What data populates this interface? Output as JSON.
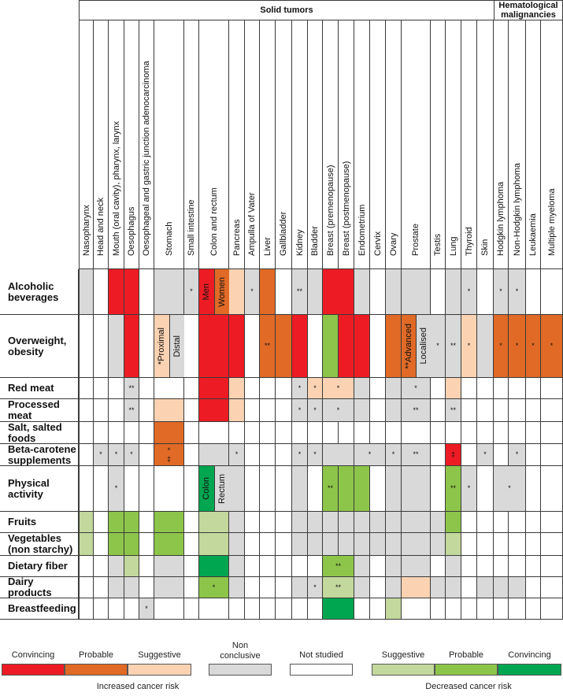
{
  "groups": [
    {
      "label": "Solid tumors"
    },
    {
      "label": "Hematological malignancies"
    }
  ],
  "columns": [
    "Nasopharynx",
    "Head and neck",
    "Mouth (oral cavity), pharynx, larynx",
    "Oesophagus",
    "Oesophageal and gastric junction adenocarcinoma",
    "Stomach",
    "Small intestine",
    "Colon and rectum",
    "Pancreas",
    "Ampulla of Vater",
    "Liver",
    "Gallbladder",
    "Kidney",
    "Bladder",
    "Breast (premenopause)",
    "Breast (postmenopause)",
    "Endometrium",
    "Cervix",
    "Ovary",
    "Prostate",
    "Testis",
    "Lung",
    "Thyroid",
    "Skin",
    "Hodgkin lymphoma",
    "Non-Hodgkin lymphoma",
    "Leukaemia",
    "Multiple myeloma"
  ],
  "colors": {
    "C+": "#ED1C24",
    "P+": "#E06A26",
    "S+": "#FBD3B3",
    "NC": "#D9D9D9",
    "NS": "#FFFFFF",
    "S-": "#C3D89C",
    "P-": "#8DC54A",
    "C-": "#00A650"
  },
  "rows": [
    {
      "label": "Alcoholic beverages",
      "cells": [
        "NC",
        "NS",
        "C+",
        "C+",
        "NS",
        "NC",
        {
          "e": "NC",
          "m": "*"
        },
        {
          "split": [
            {
              "e": "C+",
              "t": "Men"
            },
            {
              "e": "P+",
              "t": "Women"
            }
          ]
        },
        "S+",
        {
          "e": "NC",
          "m": "*"
        },
        "P+",
        "NS",
        {
          "e": "NC",
          "m": "**"
        },
        "NC",
        {
          "e": "C+",
          "span": 2
        },
        "NC",
        "NS",
        "NC",
        "NC",
        "NS",
        "NC",
        {
          "e": "NC",
          "m": "*"
        },
        "NS",
        {
          "e": "NC",
          "m": "*"
        },
        {
          "e": "NC",
          "m": "*"
        },
        "NS",
        "NS"
      ]
    },
    {
      "label": "Overweight, obesity",
      "cells": [
        "NS",
        "NS",
        "NC",
        "C+",
        "NS",
        {
          "split": [
            {
              "e": "S+",
              "t": "*Proximal"
            },
            {
              "e": "NC",
              "t": "Distal"
            }
          ]
        },
        "NS",
        "C+",
        "C+",
        "NS",
        {
          "e": "P+",
          "m": "**"
        },
        "P+",
        "C+",
        "NS",
        "P-",
        "C+",
        "C+",
        "NS",
        "P+",
        {
          "split": [
            {
              "e": "P+",
              "t": "**Advanced"
            },
            {
              "e": "NC",
              "t": "Localised"
            }
          ]
        },
        {
          "e": "NC",
          "m": "*"
        },
        {
          "e": "NC",
          "m": "**"
        },
        {
          "e": "S+",
          "m": "*"
        },
        "NC",
        {
          "e": "P+",
          "m": "*"
        },
        {
          "e": "P+",
          "m": "*"
        },
        {
          "e": "P+",
          "m": "*"
        },
        {
          "e": "P+",
          "m": "*"
        }
      ]
    },
    {
      "label": "Red meat",
      "cells": [
        "NS",
        "NS",
        "NS",
        {
          "e": "NC",
          "m": "**"
        },
        "NS",
        "NS",
        "NS",
        "C+",
        "S+",
        "NS",
        "NS",
        "NS",
        {
          "e": "NC",
          "m": "*"
        },
        {
          "e": "S+",
          "m": "*"
        },
        {
          "e": "S+",
          "m": "*",
          "span": 2
        },
        "NC",
        "NS",
        "NC",
        {
          "e": "NC",
          "m": "*"
        },
        "NS",
        "S+",
        "NS",
        "NS",
        "NS",
        "NS",
        "NS",
        "NS"
      ]
    },
    {
      "label": "Processed meat",
      "cells": [
        "NS",
        "NS",
        "NS",
        {
          "e": "NC",
          "m": "**"
        },
        "NS",
        "S+",
        "NS",
        "C+",
        "S+",
        "NS",
        "NS",
        "NS",
        {
          "e": "NC",
          "m": "*"
        },
        {
          "e": "NC",
          "m": "*"
        },
        {
          "e": "NC",
          "m": "*",
          "span": 2
        },
        "NC",
        "NS",
        "NC",
        {
          "e": "NC",
          "m": "**"
        },
        "NS",
        {
          "e": "NC",
          "m": "**"
        },
        "NS",
        "NS",
        "NS",
        "NS",
        "NS",
        "NS"
      ]
    },
    {
      "label": "Salt, salted foods",
      "cells": [
        "NS",
        "NS",
        "NS",
        "NS",
        "NS",
        "P+",
        "NS",
        "NS",
        "NS",
        "NS",
        "NS",
        "NS",
        "NS",
        "NS",
        "NS",
        "NS",
        "NS",
        "NS",
        "NS",
        "NS",
        "NS",
        "NS",
        "NS",
        "NS",
        "NS",
        "NS",
        "NS",
        "NS"
      ]
    },
    {
      "label": "Beta-carotene supplements",
      "cells": [
        "NS",
        {
          "e": "NC",
          "m": "*"
        },
        {
          "e": "NC",
          "m": "*"
        },
        {
          "e": "NC",
          "m": "*"
        },
        "NS",
        {
          "e": "P+",
          "m": "*\n‡"
        },
        "NS",
        "NC",
        {
          "e": "NC",
          "m": "*"
        },
        "NS",
        "NS",
        "NS",
        {
          "e": "NC",
          "m": "*"
        },
        {
          "e": "NC",
          "m": "*"
        },
        {
          "e": "NC",
          "span": 2
        },
        {
          "e": "NC",
          "m": "*",
          "span": 2
        },
        {
          "e": "NC",
          "m": "*"
        },
        {
          "e": "NC",
          "m": "**"
        },
        "NS",
        {
          "e": "C+",
          "m": "‡"
        },
        "NS",
        {
          "e": "NC",
          "m": "*"
        },
        "NS",
        {
          "e": "NC",
          "m": "*"
        },
        "NS",
        "NS"
      ]
    },
    {
      "label": "Physical activity",
      "cells": [
        "NS",
        "NS",
        {
          "e": "NC",
          "m": "*"
        },
        "NS",
        "NS",
        "NS",
        "NS",
        {
          "split": [
            {
              "e": "C-",
              "t": "Colon"
            },
            {
              "e": "NC",
              "t": "Rectum"
            }
          ]
        },
        "NC",
        "NS",
        "NS",
        "NS",
        "NC",
        "NS",
        {
          "e": "P-",
          "m": "**"
        },
        "P-",
        "P-",
        "NS",
        "NC",
        "NC",
        "NS",
        {
          "e": "P-",
          "m": "**"
        },
        {
          "e": "NC",
          "m": "*"
        },
        "NS",
        {
          "e": "NC",
          "m": "*",
          "span": 2
        },
        "NS",
        "NS"
      ]
    },
    {
      "label": "Fruits",
      "cells": [
        "S-",
        "NS",
        "P-",
        "P-",
        "NS",
        "P-",
        "NS",
        "S-",
        "NC",
        "NS",
        "NS",
        "NS",
        "NC",
        "NC",
        "NC",
        "NC",
        "NC",
        "NC",
        "NC",
        "NC",
        "NC",
        "P-",
        "NS",
        "NS",
        "NS",
        "NS",
        "NS",
        "NS"
      ]
    },
    {
      "label": "Vegetables (non starchy)",
      "cells": [
        "S-",
        "NS",
        "P-",
        "P-",
        "NS",
        "P-",
        "NS",
        "S-",
        "NC",
        "NS",
        "NS",
        "NS",
        "NC",
        "NC",
        "NC",
        "NC",
        "NC",
        "NC",
        "NC",
        "NC",
        "NC",
        "S-",
        "NS",
        "NS",
        "NS",
        "NS",
        "NS",
        "NS"
      ]
    },
    {
      "label": "Dietary fiber",
      "cells": [
        "NS",
        "NS",
        "NC",
        "S-",
        "NS",
        "NC",
        "NS",
        "C-",
        "NC",
        "NS",
        "NS",
        "NS",
        "NS",
        "NS",
        {
          "e": "P-",
          "m": "**",
          "span": 2
        },
        "NC",
        "NS",
        "NC",
        "NC",
        "NS",
        "NC",
        "NS",
        "NS",
        "NS",
        "NS",
        "NS",
        "NS"
      ]
    },
    {
      "label": "Dairy products",
      "cells": [
        "NS",
        "NS",
        "NC",
        "NC",
        "NS",
        "NC",
        "NS",
        {
          "e": "P-",
          "m": "*"
        },
        "NC",
        "NS",
        "NS",
        "NS",
        "NC",
        {
          "e": "NC",
          "m": "*"
        },
        {
          "e": "S-",
          "m": "**",
          "span": 2
        },
        "NC",
        "NS",
        "NC",
        "S+",
        "NC",
        "NC",
        "NS",
        "NC",
        "NC",
        "NC",
        "NS",
        "NS"
      ]
    },
    {
      "label": "Breastfeeding",
      "cells": [
        "NS",
        "NS",
        "NS",
        "NS",
        {
          "e": "NC",
          "m": "*"
        },
        "NS",
        "NS",
        "NS",
        "NS",
        "NS",
        "NS",
        "NS",
        "NS",
        "NS",
        {
          "e": "C-",
          "span": 2
        },
        "NS",
        "NS",
        "S-",
        "NS",
        "NS",
        "NS",
        "NS",
        "NS",
        "NS",
        "NS",
        "NS",
        "NS"
      ]
    }
  ],
  "legend": {
    "items": [
      {
        "e": "C+",
        "label": "Convincing"
      },
      {
        "e": "P+",
        "label": "Probable"
      },
      {
        "e": "S+",
        "label": "Suggestive"
      },
      {
        "e": "NC",
        "label": "Non conclusive"
      },
      {
        "e": "NS",
        "label": "Not studied"
      },
      {
        "e": "S-",
        "label": "Suggestive"
      },
      {
        "e": "P-",
        "label": "Probable"
      },
      {
        "e": "C-",
        "label": "Convincing"
      }
    ],
    "increased_label": "Increased cancer risk",
    "decreased_label": "Decreased cancer risk"
  }
}
